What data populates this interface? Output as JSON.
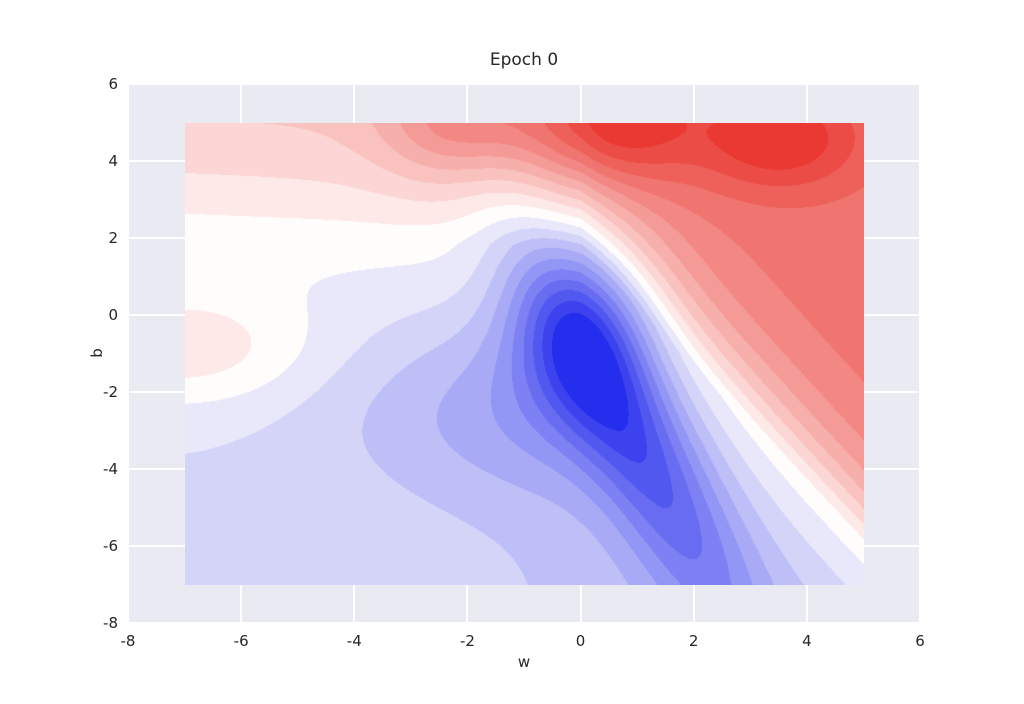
{
  "chart_data": {
    "type": "contour",
    "title": "Epoch 0",
    "xlabel": "w",
    "ylabel": "b",
    "xlim": [
      -8,
      6
    ],
    "ylim": [
      -8,
      6
    ],
    "xticks": [
      -8,
      -6,
      -4,
      -2,
      0,
      2,
      4,
      6
    ],
    "yticks": [
      -8,
      -6,
      -4,
      -2,
      0,
      2,
      4,
      6
    ],
    "extent": {
      "x": [
        -7,
        5
      ],
      "y": [
        -7,
        5
      ]
    },
    "levels": {
      "vmin": -1.3,
      "vmax": 1.3,
      "n": 21
    },
    "colormap": {
      "name": "blue-white-red",
      "stops": [
        {
          "t": 0.0,
          "color": "#1b24ec"
        },
        {
          "t": 0.5,
          "color": "#fffdfc"
        },
        {
          "t": 1.0,
          "color": "#e92f28"
        }
      ]
    },
    "style": {
      "figure_bg": "#ffffff",
      "axes_bg": "#eaeaf2",
      "grid_color": "#ffffff",
      "text_color": "#262626"
    },
    "surface": {
      "note": "approximation of plotted loss surface f(w,b): red high top/right, deep blue minimum near (0,-0.5) with valley toward (2,-6.5)",
      "minimum": {
        "w": 0,
        "b": -0.5
      },
      "boundary": {
        "b0": 1.75,
        "slope_pos": 1.55,
        "slope_neg": 0.06,
        "min": -6.5
      },
      "sigmoid_center": -1,
      "amp_above": {
        "left": 0.45,
        "right_add": 0.42
      },
      "scale_above": {
        "left": 3.5,
        "right_sub": 0.9
      },
      "amp_below": {
        "left": 0.2,
        "right_add": 0.2
      },
      "scale_below": 3,
      "wells": [
        {
          "w": 0,
          "b": -0.5,
          "amp": -0.55,
          "vw": 1.6,
          "vb": 5.5
        },
        {
          "w": -1.5,
          "b": -2.5,
          "amp": -0.25,
          "vw": 8,
          "vb": 6
        }
      ],
      "valley": {
        "amp": -0.62,
        "line_slope": -0.345,
        "line_intercept": -0.17,
        "vw": 1.1,
        "b_center": -3.2,
        "vb": 28
      },
      "bumps": [
        {
          "w": 0.5,
          "b": 5,
          "amp": 0.55,
          "vw": 2.2,
          "vb": 2.5
        },
        {
          "w": 3.5,
          "b": 4.6,
          "amp": 0.45,
          "vw": 2.0,
          "vb": 1.8
        },
        {
          "w": -2.2,
          "b": 5,
          "amp": 0.4,
          "vw": 1.6,
          "vb": 2.2
        },
        {
          "w": -7,
          "b": -0.9,
          "amp": 0.3,
          "vw": 5,
          "vb": 2.2
        }
      ]
    }
  }
}
